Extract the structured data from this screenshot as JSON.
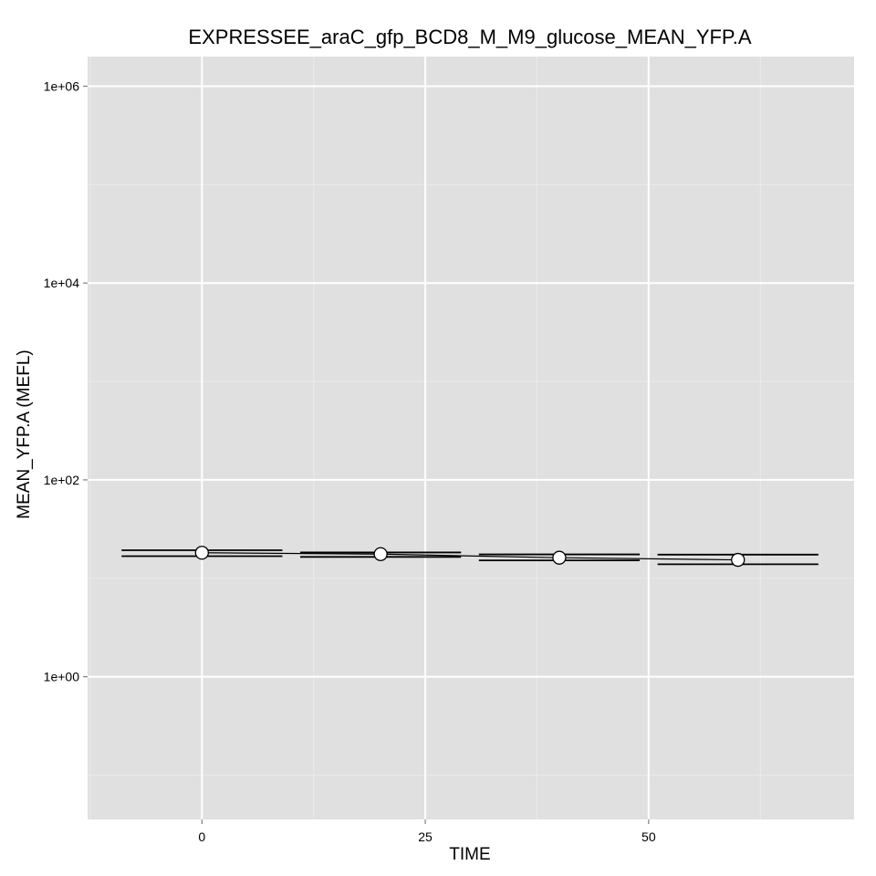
{
  "chart_data": {
    "type": "scatter",
    "title": "EXPRESSEE_araC_gfp_BCD8_M_M9_glucose_MEAN_YFP.A",
    "xlabel": "TIME",
    "ylabel": "MEAN_YFP.A  (MEFL)",
    "y_scale": "log10",
    "xlim": [
      -12.8,
      73
    ],
    "ylim": [
      0.0355,
      2000000
    ],
    "x_ticks": [
      0,
      25,
      50
    ],
    "x_tick_labels": [
      "0",
      "25",
      "50"
    ],
    "y_ticks": [
      1,
      100,
      10000,
      1000000
    ],
    "y_tick_labels": [
      "1e+00",
      "1e+02",
      "1e+04",
      "1e+06"
    ],
    "grid": true,
    "legend": "none",
    "x": [
      0,
      20,
      40,
      60
    ],
    "values": [
      18.2,
      17.6,
      16.2,
      15.4
    ],
    "error_bars": [
      {
        "x_start": -9,
        "x_end": 9,
        "lower": 16.8,
        "upper": 19.3
      },
      {
        "x_start": 11,
        "x_end": 29,
        "lower": 16.5,
        "upper": 18.3
      },
      {
        "x_start": 31,
        "x_end": 49,
        "lower": 15.2,
        "upper": 17.5
      },
      {
        "x_start": 51,
        "x_end": 69,
        "lower": 13.9,
        "upper": 17.4
      }
    ],
    "colors": {
      "panel_background": "#e0e0e0",
      "grid_major": "#ffffff",
      "grid_minor": "#eaeaea",
      "point_fill": "#ffffff",
      "line": "#000000"
    }
  }
}
